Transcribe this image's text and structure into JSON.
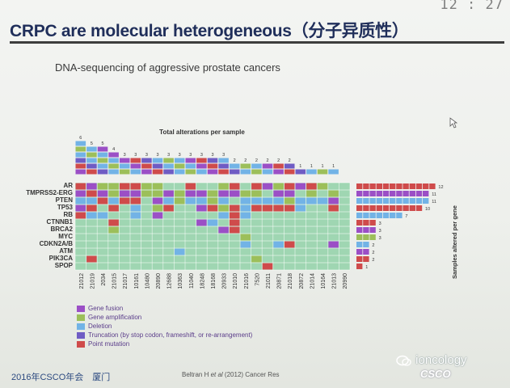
{
  "clock": "12 : 27",
  "title": "CRPC are molecular heterogeneous（分子异质性）",
  "subtitle": "DNA-sequencing of aggressive prostate cancers",
  "figure": {
    "top_title": "Total alterations per sample",
    "right_axis_label": "Samples altered per gene",
    "genes": [
      "AR",
      "TMPRSS2-ERG",
      "PTEN",
      "TP53",
      "RB",
      "CTNNB1",
      "BRCA2",
      "MYC",
      "CDKN2A/B",
      "ATM",
      "PIK3CA",
      "SPOP"
    ],
    "samples": [
      "21012",
      "21019",
      "2034",
      "21015",
      "21017",
      "10161",
      "10480",
      "20890",
      "12688",
      "10363",
      "11040",
      "18248",
      "18168",
      "20933",
      "21010",
      "21016",
      "7520",
      "21011",
      "20871",
      "21018",
      "20872",
      "21014",
      "10164",
      "21013",
      "20990"
    ],
    "alterations_per_sample": [
      "6",
      "5",
      "5",
      "4",
      "3",
      "3",
      "3",
      "3",
      "3",
      "3",
      "3",
      "3",
      "3",
      "3",
      "2",
      "2",
      "2",
      "2",
      "2",
      "2",
      "1",
      "1",
      "1",
      "1",
      ""
    ],
    "samples_altered_per_gene": [
      "12",
      "11",
      "11",
      "10",
      "7",
      "3",
      "3",
      "3",
      "2",
      "2",
      "2",
      "1"
    ]
  },
  "legend": [
    {
      "label": "Gene fusion",
      "color": "#9b4fc6"
    },
    {
      "label": "Gene amplification",
      "color": "#9cbf5a"
    },
    {
      "label": "Deletion",
      "color": "#72b3e6"
    },
    {
      "label": "Truncation (by stop codon, frameshift, or re-arrangement)",
      "color": "#6f5cc4"
    },
    {
      "label": "Point mutation",
      "color": "#cf4b4b"
    }
  ],
  "colors": {
    "cell_background": "#9fd6b2",
    "title_color": "#1f2e5a"
  },
  "footer": {
    "left": "2016年CSCO年会　厦门",
    "cite_author": "Beltran H ",
    "cite_etal": "et al",
    "cite_rest": " (2012) Cancer Res",
    "watermark": "ioncology",
    "logo": "CSCO"
  }
}
